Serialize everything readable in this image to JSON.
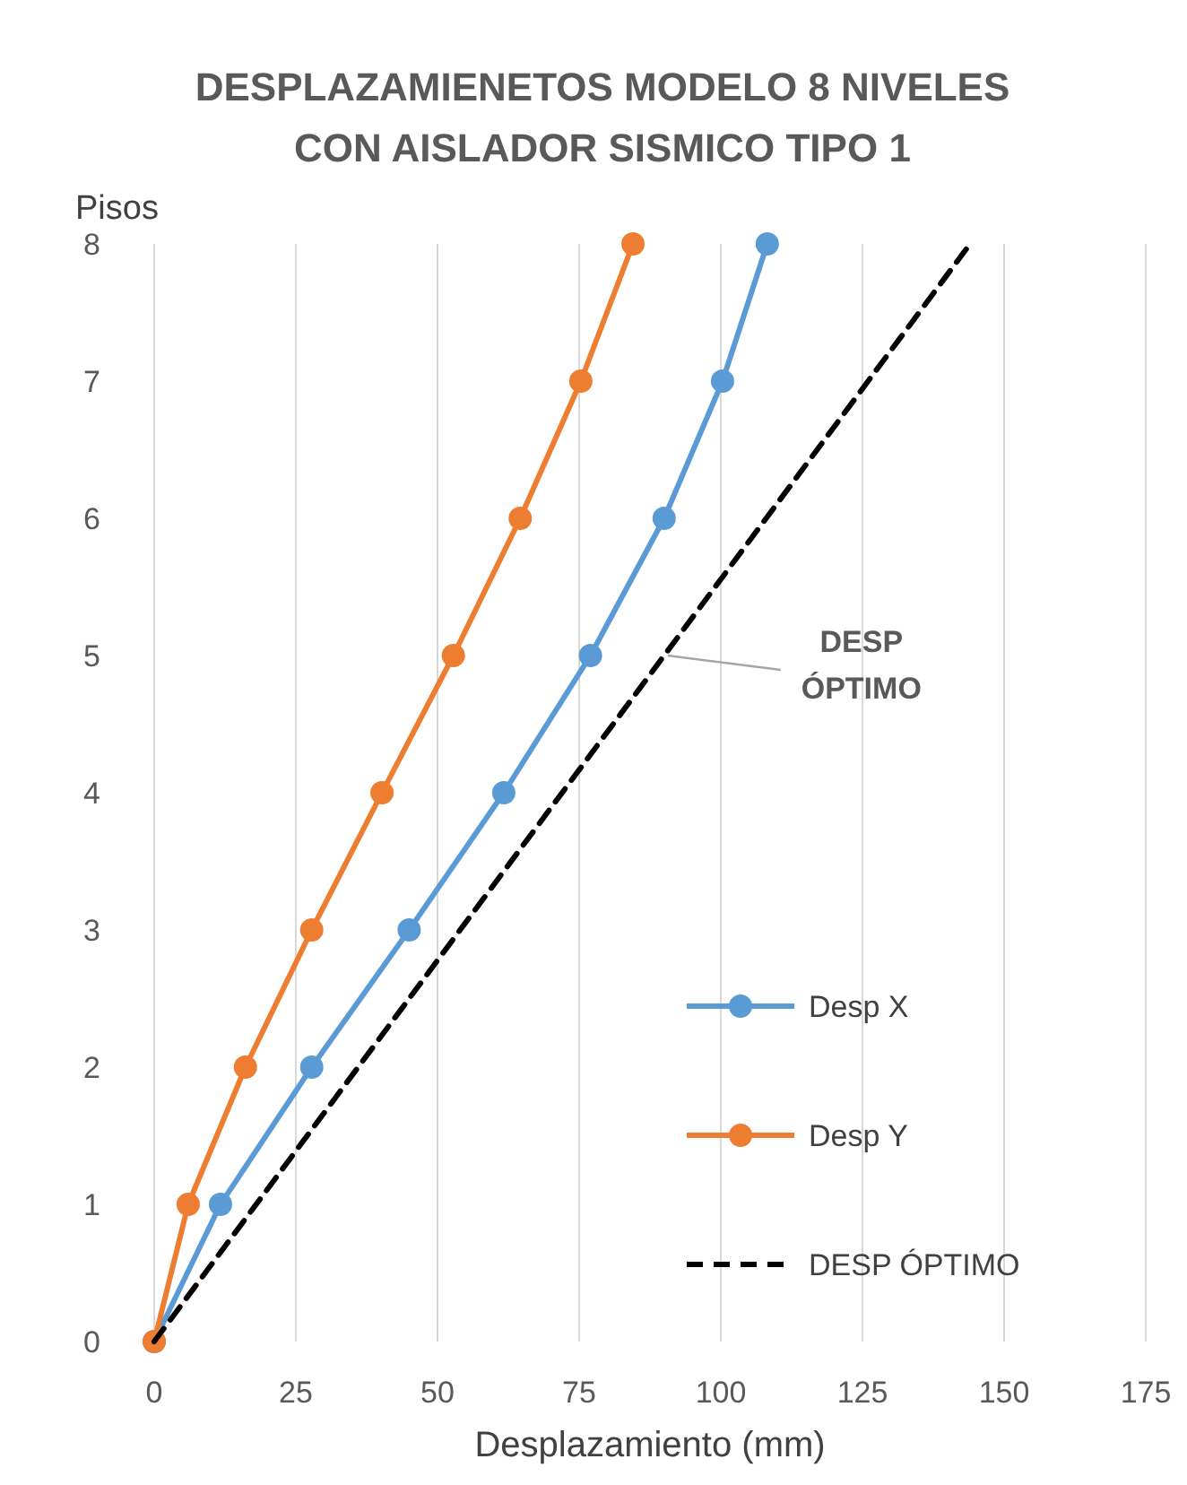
{
  "chart_data": {
    "type": "line",
    "title": "DESPLAZAMIENETOS MODELO 8 NIVELES CON AISLADOR SISMICO TIPO 1",
    "xlabel": "Desplazamiento (mm)",
    "ylabel": "Pisos",
    "xlim": [
      0,
      175
    ],
    "xticks": [
      0,
      25,
      50,
      75,
      100,
      125,
      150,
      175
    ],
    "ylim": [
      0,
      8
    ],
    "yticks": [
      0,
      1,
      2,
      3,
      4,
      5,
      6,
      7,
      8
    ],
    "grid": "x",
    "legend": "right",
    "series": [
      {
        "name": "Desp X",
        "color": "#5b9bd5",
        "marker": "circle",
        "line_style": "solid",
        "x": [
          0,
          11.7,
          27.8,
          45,
          61.7,
          77,
          90,
          100.3,
          108.2
        ],
        "values": [
          0,
          1,
          2,
          3,
          4,
          5,
          6,
          7,
          8
        ]
      },
      {
        "name": "Desp Y",
        "color": "#ed7d31",
        "marker": "circle",
        "line_style": "solid",
        "x": [
          0,
          6,
          16.1,
          27.8,
          40.2,
          52.8,
          64.6,
          75.3,
          84.5
        ],
        "values": [
          0,
          1,
          2,
          3,
          4,
          5,
          6,
          7,
          8
        ]
      },
      {
        "name": "DESP ÓPTIMO",
        "color": "#000000",
        "marker": "none",
        "line_style": "dashed",
        "x": [
          0,
          144
        ],
        "values": [
          0,
          8
        ]
      }
    ],
    "annotations": [
      {
        "text": "DESP\nÓPTIMO",
        "x": 90,
        "y": 5
      }
    ]
  }
}
